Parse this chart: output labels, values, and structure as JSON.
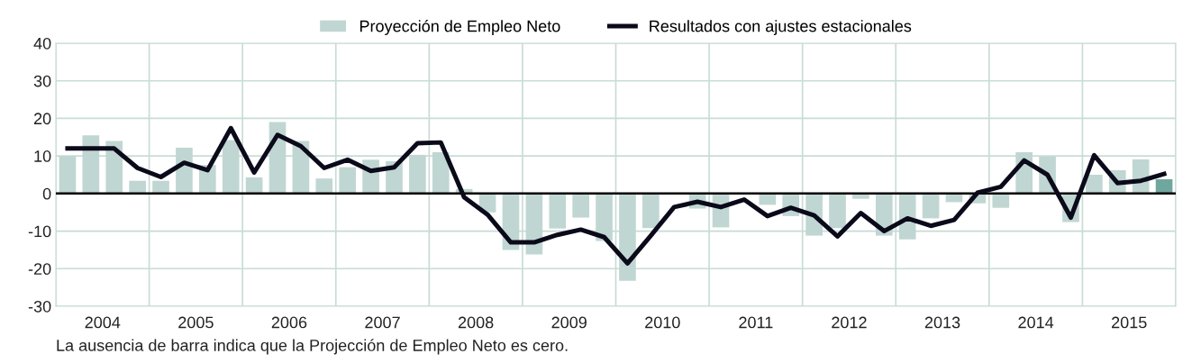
{
  "chart_data": {
    "type": "bar",
    "x": [
      2004.125,
      2004.375,
      2004.625,
      2004.875,
      2005.125,
      2005.375,
      2005.625,
      2005.875,
      2006.125,
      2006.375,
      2006.625,
      2006.875,
      2007.125,
      2007.375,
      2007.625,
      2007.875,
      2008.125,
      2008.375,
      2008.625,
      2008.875,
      2009.125,
      2009.375,
      2009.625,
      2009.875,
      2010.125,
      2010.375,
      2010.625,
      2010.875,
      2011.125,
      2011.375,
      2011.625,
      2011.875,
      2012.125,
      2012.375,
      2012.625,
      2012.875,
      2013.125,
      2013.375,
      2013.625,
      2013.875,
      2014.125,
      2014.375,
      2014.625,
      2014.875,
      2015.125,
      2015.375,
      2015.625,
      2015.875
    ],
    "series": [
      {
        "name": "Proyección de Empleo Neto",
        "color": "#c0d6d2",
        "colors": [
          "#c0d6d2",
          "#c0d6d2",
          "#c0d6d2",
          "#c0d6d2",
          "#c0d6d2",
          "#c0d6d2",
          "#c0d6d2",
          "#c0d6d2",
          "#c0d6d2",
          "#c0d6d2",
          "#c0d6d2",
          "#c0d6d2",
          "#c0d6d2",
          "#c0d6d2",
          "#c0d6d2",
          "#c0d6d2",
          "#c0d6d2",
          "#c0d6d2",
          "#c0d6d2",
          "#c0d6d2",
          "#c0d6d2",
          "#c0d6d2",
          "#c0d6d2",
          "#c0d6d2",
          "#c0d6d2",
          "#c0d6d2",
          "#c0d6d2",
          "#c0d6d2",
          "#c0d6d2",
          "#c0d6d2",
          "#c0d6d2",
          "#c0d6d2",
          "#c0d6d2",
          "#c0d6d2",
          "#c0d6d2",
          "#c0d6d2",
          "#c0d6d2",
          "#c0d6d2",
          "#c0d6d2",
          "#c0d6d2",
          "#c0d6d2",
          "#c0d6d2",
          "#c0d6d2",
          "#c0d6d2",
          "#c0d6d2",
          "#c0d6d2",
          "#c0d6d2",
          "#6fa79f"
        ],
        "values": [
          10,
          15.5,
          14,
          3.4,
          3.4,
          12.2,
          7.6,
          14.2,
          4.3,
          19,
          14,
          4,
          7,
          9,
          8.6,
          10.3,
          11,
          1.2,
          -5,
          -15,
          -16.2,
          -9.3,
          -6.4,
          -12.6,
          -23.2,
          -9.2,
          0,
          -4,
          -9,
          0,
          -3,
          -6,
          -11.2,
          -9.2,
          -1.4,
          -11.2,
          -12.2,
          -6.6,
          -2.3,
          -2.6,
          -3.8,
          11,
          9.8,
          -7.6,
          5,
          6.2,
          9.1,
          3.8
        ]
      },
      {
        "name": "Resultados con ajustes estacionales",
        "type": "line",
        "color": "#0a0a1a",
        "values": [
          12,
          12,
          12,
          6.8,
          4.4,
          8.2,
          6.2,
          17.4,
          5.6,
          15.6,
          12.6,
          6.8,
          9,
          6,
          7,
          13.4,
          13.6,
          -1,
          -5.6,
          -13,
          -13,
          -11,
          -9.6,
          -11.6,
          -18.6,
          -11.2,
          -3.6,
          -2.2,
          -3.6,
          -1.6,
          -6,
          -3.8,
          -5.8,
          -11.4,
          -5.2,
          -10,
          -6.6,
          -8.6,
          -7,
          0.2,
          1.8,
          8.8,
          5,
          -6.4,
          10.2,
          2.8,
          3.4,
          5.2
        ]
      }
    ],
    "xlim": [
      2004,
      2016
    ],
    "xticks": [
      {
        "value": 2004,
        "label": null
      },
      {
        "value": 2004.5,
        "label": "2004"
      },
      {
        "value": 2005,
        "label": null
      },
      {
        "value": 2005.5,
        "label": "2005"
      },
      {
        "value": 2006,
        "label": null
      },
      {
        "value": 2006.5,
        "label": "2006"
      },
      {
        "value": 2007,
        "label": null
      },
      {
        "value": 2007.5,
        "label": "2007"
      },
      {
        "value": 2008,
        "label": null
      },
      {
        "value": 2008.5,
        "label": "2008"
      },
      {
        "value": 2009,
        "label": null
      },
      {
        "value": 2009.5,
        "label": "2009"
      },
      {
        "value": 2010,
        "label": null
      },
      {
        "value": 2010.5,
        "label": "2010"
      },
      {
        "value": 2011,
        "label": null
      },
      {
        "value": 2011.5,
        "label": "2011"
      },
      {
        "value": 2012,
        "label": null
      },
      {
        "value": 2012.5,
        "label": "2012"
      },
      {
        "value": 2013,
        "label": null
      },
      {
        "value": 2013.5,
        "label": "2013"
      },
      {
        "value": 2014,
        "label": null
      },
      {
        "value": 2014.5,
        "label": "2014"
      },
      {
        "value": 2015,
        "label": null
      },
      {
        "value": 2015.5,
        "label": "2015"
      },
      {
        "value": 2016,
        "label": null
      }
    ],
    "ylim": [
      -30,
      40
    ],
    "yticks": [
      -30,
      -20,
      -10,
      0,
      10,
      20,
      30,
      40
    ],
    "grid": true,
    "legend": "top",
    "ref_lines": [
      {
        "axis": "y",
        "value": 0,
        "color": "#000000"
      }
    ],
    "annotations": [
      "La ausencia de barra indica que la Projección de Empleo Neto es cero."
    ]
  }
}
